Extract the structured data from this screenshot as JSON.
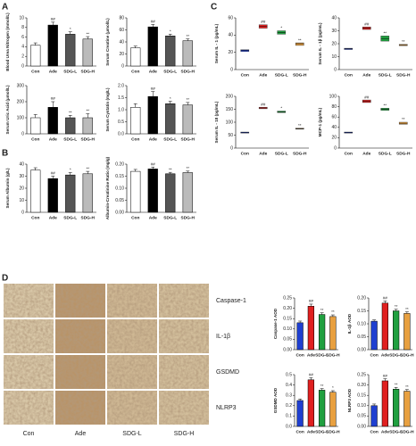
{
  "panel_labels": [
    "A",
    "B",
    "C",
    "D"
  ],
  "images": {
    "rows": [
      "Caspase-1",
      "IL-1β",
      "GSDMD",
      "NLRP3"
    ],
    "columns": [
      "Con",
      "Ade",
      "SDG-L",
      "SDG-H"
    ]
  },
  "chart_data": [
    {
      "type": "bar",
      "y_label": "Blood Urea Nitrogen (mmol/L)",
      "categories": [
        "Con",
        "Ade",
        "SDG-L",
        "SDG-H"
      ],
      "values": [
        4.3,
        8.5,
        6.6,
        5.6
      ],
      "errors": [
        0.5,
        0.6,
        0.5,
        0.5
      ],
      "annotations": [
        null,
        "##",
        "*",
        "**"
      ],
      "colors": [
        "#ffffff",
        "#000000",
        "#555555",
        "#bbbbbb"
      ],
      "ylim": [
        0,
        10
      ],
      "yticks": [
        0,
        2,
        4,
        6,
        8,
        10
      ]
    },
    {
      "type": "bar",
      "y_label": "Serum Creatine (μmol/L)",
      "categories": [
        "Con",
        "Ade",
        "SDG-L",
        "SDG-H"
      ],
      "values": [
        30,
        65,
        50,
        42
      ],
      "errors": [
        3,
        4,
        3,
        3
      ],
      "annotations": [
        null,
        "##",
        "*",
        "**"
      ],
      "colors": [
        "#ffffff",
        "#000000",
        "#555555",
        "#bbbbbb"
      ],
      "ylim": [
        0,
        80
      ],
      "yticks": [
        0,
        20,
        40,
        60,
        80
      ]
    },
    {
      "type": "bar",
      "y_label": "Serum Uric Acid (μmol/L)",
      "categories": [
        "Con",
        "Ade",
        "SDG-L",
        "SDG-H"
      ],
      "values": [
        100,
        165,
        100,
        100
      ],
      "errors": [
        20,
        35,
        15,
        25
      ],
      "annotations": [
        null,
        "##",
        "**",
        "**"
      ],
      "colors": [
        "#ffffff",
        "#000000",
        "#555555",
        "#bbbbbb"
      ],
      "ylim": [
        0,
        300
      ],
      "yticks": [
        0,
        100,
        200,
        300
      ]
    },
    {
      "type": "bar",
      "y_label": "Serum Cystatin (mg/L)",
      "categories": [
        "Con",
        "Ade",
        "SDG-L",
        "SDG-H"
      ],
      "values": [
        1.1,
        1.55,
        1.25,
        1.2
      ],
      "errors": [
        0.15,
        0.2,
        0.1,
        0.1
      ],
      "annotations": [
        null,
        "##",
        "*",
        "**"
      ],
      "colors": [
        "#ffffff",
        "#000000",
        "#555555",
        "#bbbbbb"
      ],
      "ylim": [
        0,
        2
      ],
      "yticks": [
        {
          "value": 0,
          "label": "0.0"
        },
        {
          "value": 0.5,
          "label": "0.5"
        },
        {
          "value": 1,
          "label": "1.0"
        },
        {
          "value": 1.5,
          "label": "1.5"
        },
        {
          "value": 2,
          "label": "2.0"
        }
      ]
    },
    {
      "type": "bar",
      "y_label": "Serum Albumin (g/L)",
      "categories": [
        "Con",
        "Ade",
        "SDG-L",
        "SDG-H"
      ],
      "values": [
        35,
        28,
        31,
        32
      ],
      "errors": [
        2,
        2,
        2,
        2
      ],
      "annotations": [
        null,
        "##",
        "*",
        "**"
      ],
      "colors": [
        "#ffffff",
        "#000000",
        "#555555",
        "#bbbbbb"
      ],
      "ylim": [
        0,
        40
      ],
      "yticks": [
        0,
        10,
        20,
        30,
        40
      ]
    },
    {
      "type": "bar",
      "y_label": "Albumin-Creatinine Ratio (mg/g)",
      "categories": [
        "Con",
        "Ade",
        "SDG-L",
        "SDG-H"
      ],
      "values": [
        0.17,
        0.18,
        0.16,
        0.165
      ],
      "errors": [
        0.008,
        0.008,
        0.006,
        0.006
      ],
      "annotations": [
        null,
        "##",
        "**",
        "**"
      ],
      "colors": [
        "#ffffff",
        "#000000",
        "#555555",
        "#bbbbbb"
      ],
      "ylim": [
        0,
        0.2
      ],
      "yticks": [
        {
          "value": 0,
          "label": "0.00"
        },
        {
          "value": 0.05,
          "label": "0.05"
        },
        {
          "value": 0.1,
          "label": "0.10"
        },
        {
          "value": 0.15,
          "label": "0.15"
        },
        {
          "value": 0.2,
          "label": "0.20"
        }
      ]
    },
    {
      "type": "box",
      "y_label": "Serum IL - 1 (pg/mL)",
      "categories": [
        "Con",
        "Ade",
        "SDG-L",
        "SDG-H"
      ],
      "q1": [
        21,
        48,
        41,
        28
      ],
      "median": [
        22,
        50,
        43,
        30
      ],
      "q3": [
        23,
        52,
        45,
        31
      ],
      "annotations": [
        null,
        "##",
        "*",
        "**"
      ],
      "colors": [
        "#1f3fd0",
        "#e02020",
        "#20a040",
        "#e8a040"
      ],
      "ylim": [
        0,
        60
      ],
      "yticks": [
        0,
        20,
        40,
        60
      ]
    },
    {
      "type": "box",
      "y_label": "Serum IL - 1β (pg/mL)",
      "categories": [
        "Con",
        "Ade",
        "SDG-L",
        "SDG-H"
      ],
      "q1": [
        15.5,
        31,
        22,
        18.5
      ],
      "median": [
        16,
        32,
        24,
        19
      ],
      "q3": [
        16.5,
        33,
        26,
        19.5
      ],
      "annotations": [
        null,
        "##",
        "**",
        "**"
      ],
      "colors": [
        "#1f3fd0",
        "#e02020",
        "#20a040",
        "#e8a040"
      ],
      "ylim": [
        0,
        40
      ],
      "yticks": [
        0,
        10,
        20,
        30,
        40
      ]
    },
    {
      "type": "box",
      "y_label": "Serum IL - 18 (pg/mL)",
      "categories": [
        "Con",
        "Ade",
        "SDG-L",
        "SDG-H"
      ],
      "q1": [
        58,
        152,
        137,
        73
      ],
      "median": [
        60,
        155,
        140,
        75
      ],
      "q3": [
        62,
        158,
        143,
        77
      ],
      "annotations": [
        null,
        "##",
        "*",
        "**"
      ],
      "colors": [
        "#1f3fd0",
        "#e02020",
        "#20a040",
        "#e8a040"
      ],
      "ylim": [
        0,
        200
      ],
      "yticks": [
        0,
        50,
        100,
        150,
        200
      ]
    },
    {
      "type": "box",
      "y_label": "MCP-1 (pg/mL)",
      "categories": [
        "Con",
        "Ade",
        "SDG-L",
        "SDG-H"
      ],
      "q1": [
        29,
        88,
        73,
        46
      ],
      "median": [
        30,
        90,
        75,
        48
      ],
      "q3": [
        31,
        93,
        77,
        50
      ],
      "annotations": [
        null,
        "##",
        "**",
        "**"
      ],
      "colors": [
        "#1f3fd0",
        "#e02020",
        "#20a040",
        "#e8a040"
      ],
      "ylim": [
        0,
        100
      ],
      "yticks": [
        0,
        20,
        40,
        60,
        80,
        100
      ]
    },
    {
      "type": "bar",
      "y_label": "Caspase-1 AOD",
      "categories": [
        "Con",
        "Ade",
        "SDG-L",
        "SDG-H"
      ],
      "values": [
        0.13,
        0.21,
        0.17,
        0.16
      ],
      "errors": [
        0.008,
        0.01,
        0.008,
        0.008
      ],
      "annotations": [
        null,
        "##",
        "**",
        "**"
      ],
      "colors": [
        "#1f3fd0",
        "#e02020",
        "#20a040",
        "#e8a040"
      ],
      "ylim": [
        0,
        0.25
      ],
      "yticks": [
        {
          "value": 0,
          "label": "0.00"
        },
        {
          "value": 0.05,
          "label": "0.05"
        },
        {
          "value": 0.1,
          "label": "0.10"
        },
        {
          "value": 0.15,
          "label": "0.15"
        },
        {
          "value": 0.2,
          "label": "0.20"
        },
        {
          "value": 0.25,
          "label": "0.25"
        }
      ]
    },
    {
      "type": "bar",
      "y_label": "IL-1β AOD",
      "categories": [
        "Con",
        "Ade",
        "SDG-L",
        "SDG-H"
      ],
      "values": [
        0.11,
        0.18,
        0.15,
        0.14
      ],
      "errors": [
        0.005,
        0.008,
        0.006,
        0.006
      ],
      "annotations": [
        null,
        "##",
        "**",
        "**"
      ],
      "colors": [
        "#1f3fd0",
        "#e02020",
        "#20a040",
        "#e8a040"
      ],
      "ylim": [
        0,
        0.2
      ],
      "yticks": [
        {
          "value": 0,
          "label": "0.00"
        },
        {
          "value": 0.05,
          "label": "0.05"
        },
        {
          "value": 0.1,
          "label": "0.10"
        },
        {
          "value": 0.15,
          "label": "0.15"
        },
        {
          "value": 0.2,
          "label": "0.20"
        }
      ]
    },
    {
      "type": "bar",
      "y_label": "GSDMD AOD",
      "categories": [
        "Con",
        "Ade",
        "SDG-L",
        "SDG-H"
      ],
      "values": [
        0.25,
        0.45,
        0.35,
        0.33
      ],
      "errors": [
        0.015,
        0.02,
        0.015,
        0.015
      ],
      "annotations": [
        null,
        "##",
        "**",
        "*"
      ],
      "colors": [
        "#1f3fd0",
        "#e02020",
        "#20a040",
        "#e8a040"
      ],
      "ylim": [
        0,
        0.5
      ],
      "yticks": [
        {
          "value": 0,
          "label": "0.0"
        },
        {
          "value": 0.1,
          "label": "0.1"
        },
        {
          "value": 0.2,
          "label": "0.2"
        },
        {
          "value": 0.3,
          "label": "0.3"
        },
        {
          "value": 0.4,
          "label": "0.4"
        },
        {
          "value": 0.5,
          "label": "0.5"
        }
      ]
    },
    {
      "type": "bar",
      "y_label": "NLRP3 AOD",
      "categories": [
        "Con",
        "Ade",
        "SDG-L",
        "SDG-H"
      ],
      "values": [
        0.1,
        0.22,
        0.18,
        0.17
      ],
      "errors": [
        0.008,
        0.01,
        0.008,
        0.008
      ],
      "annotations": [
        null,
        "##",
        "**",
        "**"
      ],
      "colors": [
        "#1f3fd0",
        "#e02020",
        "#20a040",
        "#e8a040"
      ],
      "ylim": [
        0,
        0.25
      ],
      "yticks": [
        {
          "value": 0,
          "label": "0.00"
        },
        {
          "value": 0.05,
          "label": "0.05"
        },
        {
          "value": 0.1,
          "label": "0.10"
        },
        {
          "value": 0.15,
          "label": "0.15"
        },
        {
          "value": 0.2,
          "label": "0.20"
        },
        {
          "value": 0.25,
          "label": "0.25"
        }
      ]
    }
  ]
}
